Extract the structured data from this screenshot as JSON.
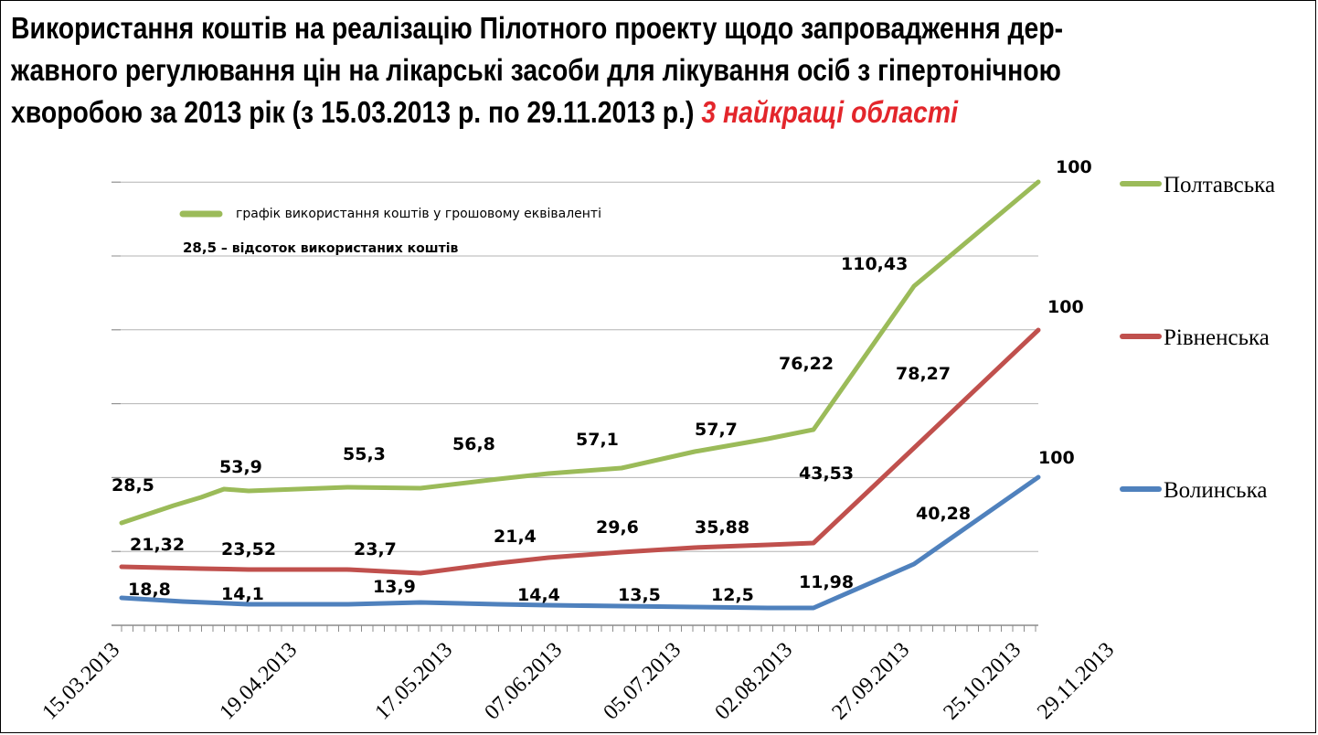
{
  "title": {
    "line1": "Використання коштів на реалізацію Пілотного проекту щодо запровадження дер-",
    "line2": "жавного регулювання цін на лікарські засоби для лікування осіб з гіпертонічною",
    "line3": "хворобою за 2013 рік  (з 15.03.2013 р. по 29.11.2013 р.) ",
    "highlight": "3 найкращі області"
  },
  "note": {
    "series_text": "графік використання коштів у грошовому еквіваленті",
    "sample_value": "28,5",
    "value_text": " – відсоток використаних коштів"
  },
  "colors": {
    "poltava": "#9bbb59",
    "rivne": "#c0504d",
    "volyn": "#4f81bd",
    "highlight": "#e3262b"
  },
  "chart_data": {
    "type": "line",
    "x_tick_labels": [
      "15.03.2013",
      "19.04.2013",
      "17.05.2013",
      "07.06.2013",
      "05.07.2013",
      "02.08.2013",
      "27.09.2013",
      "25.10.2013",
      "29.11.2013"
    ],
    "grid": true,
    "legend_position": "right",
    "series": [
      {
        "name": "Полтавська",
        "color": "#9bbb59",
        "label_values": [
          "28,5",
          "53,9",
          "55,3",
          "56,8",
          "57,1",
          "57,7",
          "76,22",
          "110,43",
          "100"
        ]
      },
      {
        "name": "Рівненська",
        "color": "#c0504d",
        "label_values": [
          "21,32",
          "23,52",
          "23,7",
          "21,4",
          "29,6",
          "35,88",
          "43,53",
          "78,27",
          "100"
        ]
      },
      {
        "name": "Волинська",
        "color": "#4f81bd",
        "label_values": [
          "18,8",
          "14,1",
          "13,9",
          "14,4",
          "13,5",
          "12,5",
          "11,98",
          "40,28",
          "100"
        ]
      }
    ]
  }
}
